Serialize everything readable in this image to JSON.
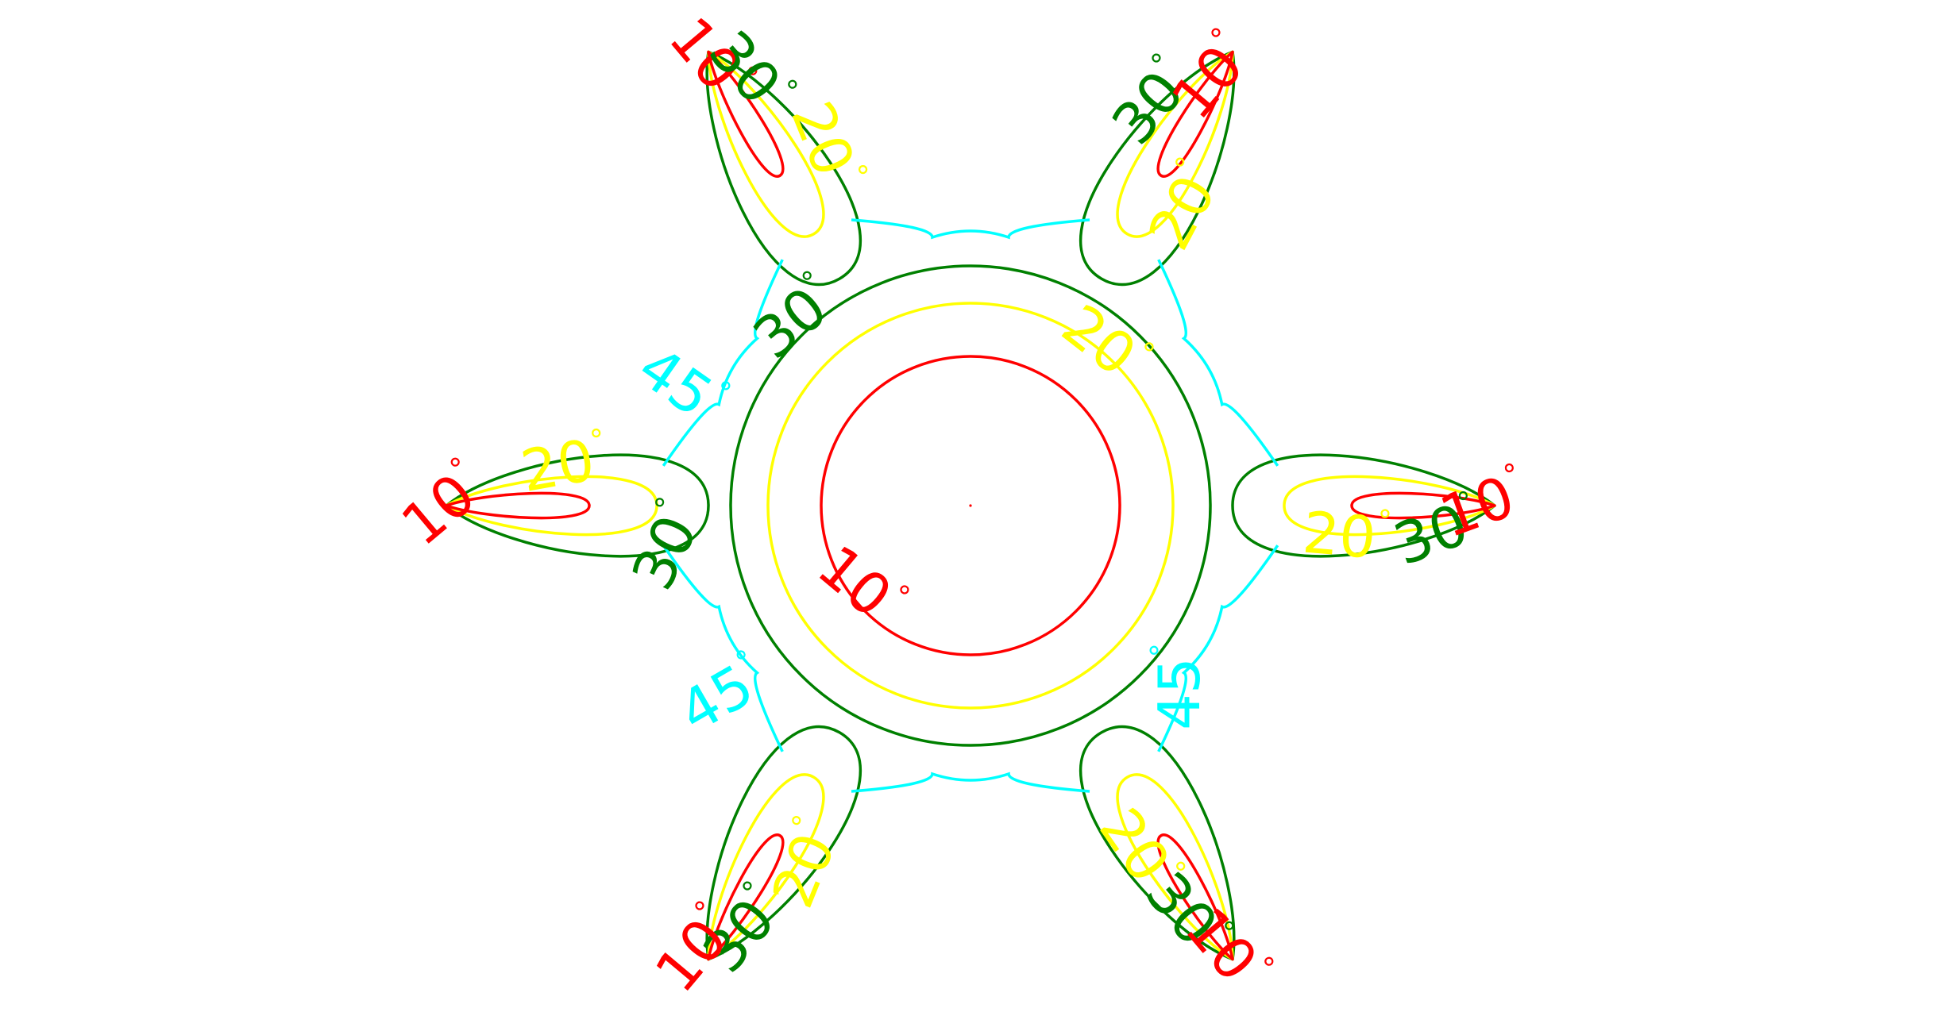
{
  "chart_data": {
    "type": "contour",
    "title": "",
    "xlabel": "",
    "ylabel": "",
    "axes_visible": false,
    "grid": false,
    "legend": "none",
    "symmetry": "six-fold",
    "lobe_angles_deg": [
      0,
      60,
      120,
      180,
      240,
      300
    ],
    "gap_angles_deg": [
      30,
      90,
      150,
      210,
      270,
      330
    ],
    "levels": [
      {
        "value": 10,
        "label": "10",
        "color": "#ff0000"
      },
      {
        "value": 20,
        "label": "20",
        "color": "#ffff00"
      },
      {
        "value": 30,
        "label": "30",
        "color": "#008000"
      },
      {
        "value": 45,
        "label": "45",
        "color": "#00ffff"
      }
    ],
    "degree_symbol": "°"
  }
}
